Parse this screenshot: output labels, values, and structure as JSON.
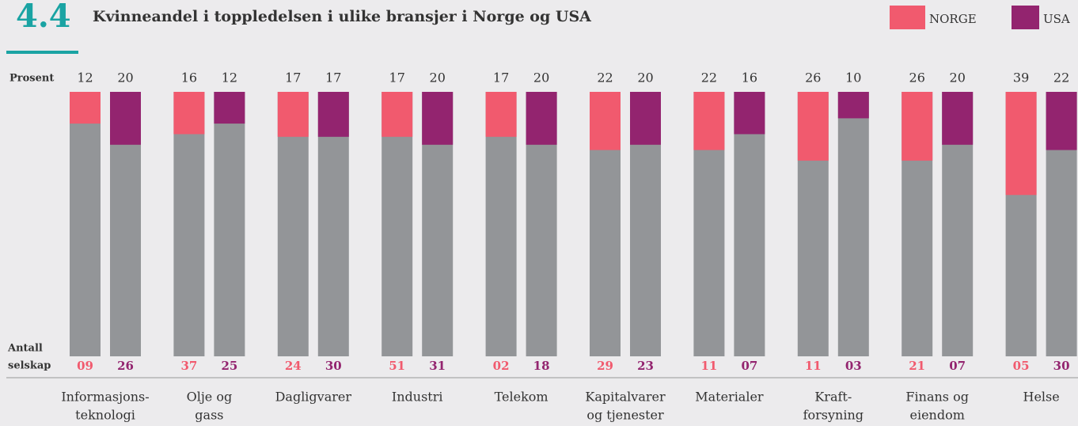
{
  "chart_data": {
    "type": "bar",
    "badge": "4.4",
    "title": "Kvinneandel i toppledelsen i ulike bransjer i Norge og USA",
    "y_label": "Prosent",
    "count_label": [
      "Antall",
      "selskap"
    ],
    "categories": [
      [
        "Informasjons-",
        "teknologi"
      ],
      [
        "Olje og",
        "gass"
      ],
      [
        "Dagligvarer"
      ],
      [
        "Industri"
      ],
      [
        "Telekom"
      ],
      [
        "Kapitalvarer",
        "og tjenester"
      ],
      [
        "Materialer"
      ],
      [
        "Kraft-",
        "forsyning"
      ],
      [
        "Finans og",
        "eiendom"
      ],
      [
        "Helse"
      ]
    ],
    "ylim": [
      0,
      100
    ],
    "base_color": "#939598",
    "series": [
      {
        "name": "NORGE",
        "color": "#f15a6e",
        "values": [
          12,
          16,
          17,
          17,
          17,
          22,
          22,
          26,
          26,
          39
        ],
        "counts": [
          9,
          37,
          24,
          51,
          2,
          29,
          11,
          11,
          21,
          5
        ],
        "count_labels": [
          "09",
          "37",
          "24",
          "51",
          "02",
          "29",
          "11",
          "11",
          "21",
          "05"
        ]
      },
      {
        "name": "USA",
        "color": "#93246f",
        "values": [
          20,
          12,
          17,
          20,
          20,
          20,
          16,
          10,
          20,
          22
        ],
        "counts": [
          26,
          25,
          30,
          31,
          18,
          23,
          7,
          3,
          7,
          30
        ],
        "count_labels": [
          "26",
          "25",
          "30",
          "31",
          "18",
          "23",
          "07",
          "03",
          "07",
          "30"
        ]
      }
    ]
  }
}
